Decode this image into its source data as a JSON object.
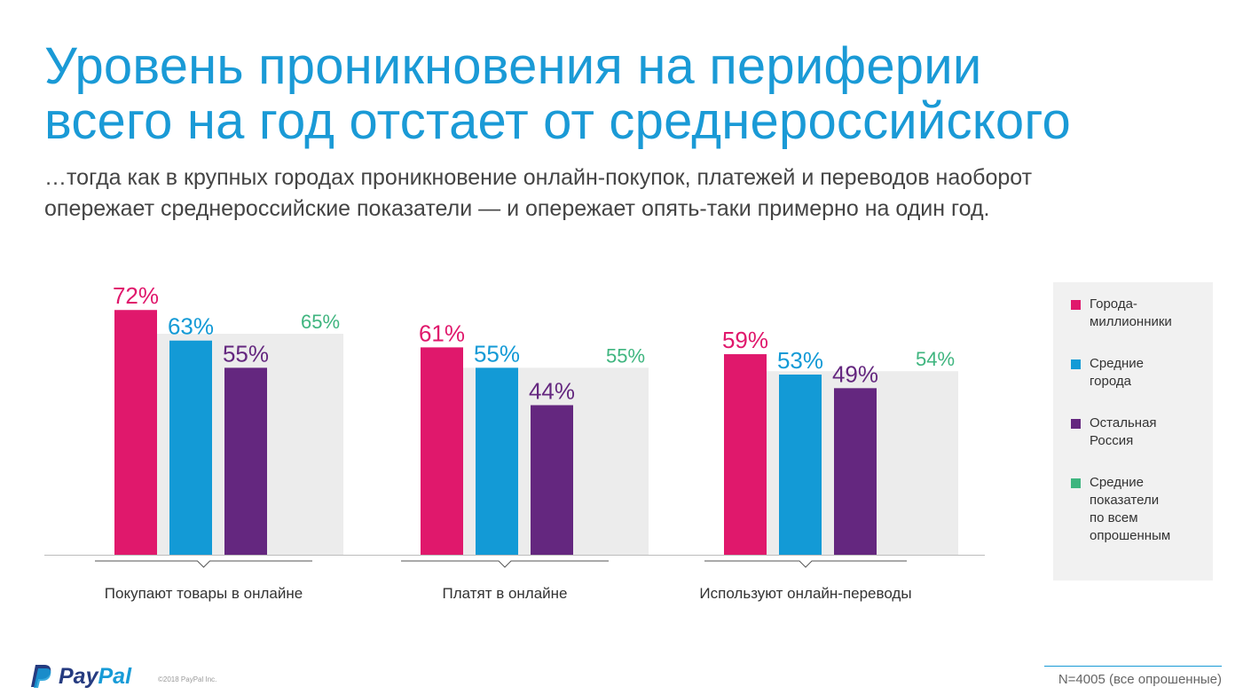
{
  "header": {
    "title_line1": "Уровень проникновения на периферии",
    "title_line2": "всего на год отстает от среднероссийского",
    "subtitle_line1": "…тогда как в крупных городах проникновение онлайн-покупок, платежей и переводов наоборот",
    "subtitle_line2": "опережает среднероссийские показатели — и опережает опять-таки примерно на один год."
  },
  "chart_data": {
    "type": "bar",
    "title": "",
    "xlabel": "",
    "ylabel": "",
    "ylim": [
      0,
      100
    ],
    "grid": false,
    "legend_position": "right",
    "categories": [
      "Покупают товары в онлайне",
      "Платят в онлайне",
      "Используют онлайн-переводы"
    ],
    "series": [
      {
        "name": "Города-миллионники",
        "color": "#e0186c",
        "values": [
          72,
          61,
          59
        ]
      },
      {
        "name": "Средние города",
        "color": "#139ad6",
        "values": [
          63,
          55,
          53
        ]
      },
      {
        "name": "Остальная Россия",
        "color": "#64277f",
        "values": [
          55,
          44,
          49
        ]
      },
      {
        "name": "Средние показатели по всем опрошенным",
        "color": "#3fb57f",
        "background_color": "#ececec",
        "values": [
          65,
          55,
          54
        ]
      }
    ],
    "value_suffix": "%"
  },
  "legend": {
    "items": [
      {
        "lines": [
          "Города-",
          "миллионники"
        ],
        "color": "#e0186c"
      },
      {
        "lines": [
          "Средние",
          "города"
        ],
        "color": "#139ad6"
      },
      {
        "lines": [
          "Остальная",
          "Россия"
        ],
        "color": "#64277f"
      },
      {
        "lines": [
          "Средние",
          "показатели",
          "по всем",
          "опрошенным"
        ],
        "color": "#3fb57f"
      }
    ]
  },
  "footer": {
    "logo_pay": "Pay",
    "logo_pal": "Pal",
    "copyright": "©2018 PayPal Inc.",
    "sample_size": "N=4005 (все опрошенные)"
  }
}
